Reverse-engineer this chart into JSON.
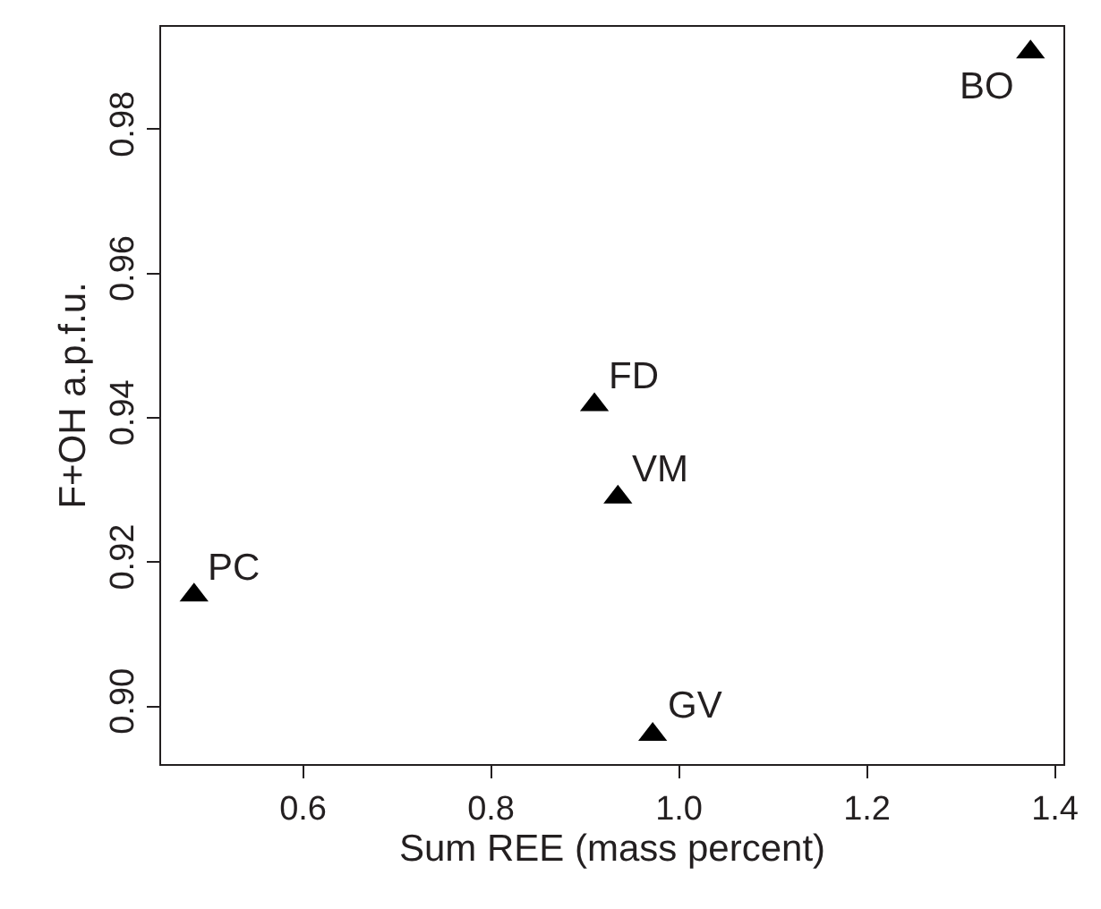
{
  "chart_data": {
    "type": "scatter",
    "xlabel": "Sum REE (mass percent)",
    "ylabel": "F+OH a.p.f.u.",
    "x": [
      0.484,
      0.91,
      0.935,
      0.972,
      1.374
    ],
    "series": [
      {
        "color": "#000000",
        "values": [
          0.9154,
          0.9418,
          0.929,
          0.8961,
          0.9907
        ]
      }
    ],
    "annotations": [
      {
        "text": "PC",
        "x": 0.484,
        "y": 0.9154
      },
      {
        "text": "FD",
        "x": 0.91,
        "y": 0.9418
      },
      {
        "text": "VM",
        "x": 0.935,
        "y": 0.929
      },
      {
        "text": "GV",
        "x": 0.972,
        "y": 0.8961
      },
      {
        "text": "BO",
        "x": 1.374,
        "y": 0.9907
      }
    ],
    "xlim": [
      0.449,
      1.409
    ],
    "ylim": [
      0.892,
      0.9942
    ],
    "xticks": [
      0.6,
      0.8,
      {
        "value": 1,
        "label": "1.0"
      },
      1.2,
      1.4
    ],
    "yticks": [
      {
        "value": 0.9,
        "label": "0.90"
      },
      0.92,
      0.94,
      0.96,
      0.98
    ],
    "marker": "triangle"
  }
}
